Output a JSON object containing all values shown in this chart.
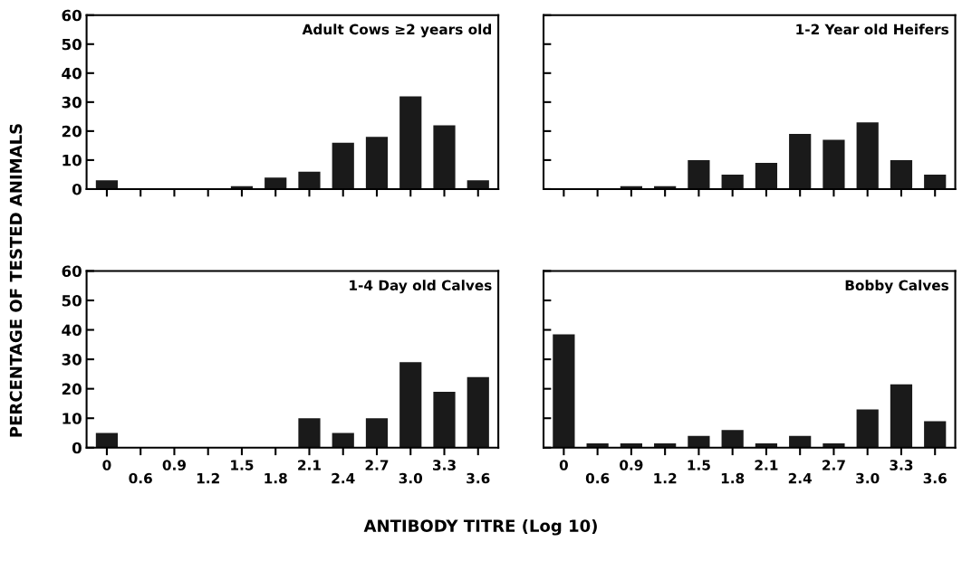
{
  "chart_data": [
    {
      "type": "bar",
      "title": "Adult Cows ≥2 years old",
      "ylabel": "PERCENTAGE OF TESTED ANIMALS",
      "categories": [
        "0",
        "0.6",
        "0.9",
        "1.2",
        "1.5",
        "1.8",
        "2.1",
        "2.4",
        "2.7",
        "3.0",
        "3.3",
        "3.6"
      ],
      "color": "#1a1a1a",
      "values": [
        3,
        0,
        0,
        0,
        1,
        4,
        6,
        16,
        18,
        32,
        22,
        3
      ],
      "ylim": [
        0,
        60
      ],
      "yticks": [
        0,
        10,
        20,
        30,
        40,
        50,
        60
      ],
      "tick_labels": "y"
    },
    {
      "type": "bar",
      "title": "1-2 Year old Heifers",
      "categories": [
        "0",
        "0.6",
        "0.9",
        "1.2",
        "1.5",
        "1.8",
        "2.1",
        "2.4",
        "2.7",
        "3.0",
        "3.3",
        "3.6"
      ],
      "color": "#1a1a1a",
      "values": [
        0,
        0,
        1,
        1,
        10,
        5,
        9,
        19,
        17,
        23,
        10,
        5
      ],
      "ylim": [
        0,
        60
      ],
      "yticks": [
        0,
        10,
        20,
        30,
        40,
        50,
        60
      ],
      "tick_labels": false
    },
    {
      "type": "bar",
      "title": "1-4 Day old Calves",
      "xlabel": "ANTIBODY TITRE (Log 10)",
      "categories": [
        "0",
        "0.6",
        "0.9",
        "1.2",
        "1.5",
        "1.8",
        "2.1",
        "2.4",
        "2.7",
        "3.0",
        "3.3",
        "3.6"
      ],
      "color": "#1a1a1a",
      "values": [
        5,
        0,
        0,
        0,
        0,
        0,
        10,
        5,
        10,
        29,
        19,
        24
      ],
      "ylim": [
        0,
        60
      ],
      "yticks": [
        0,
        10,
        20,
        30,
        40,
        50,
        60
      ]
    },
    {
      "type": "bar",
      "title": "Bobby Calves",
      "categories": [
        "0",
        "0.6",
        "0.9",
        "1.2",
        "1.5",
        "1.8",
        "2.1",
        "2.4",
        "2.7",
        "3.0",
        "3.3",
        "3.6"
      ],
      "color": "#1a1a1a",
      "values": [
        38.5,
        1.5,
        1.5,
        1.5,
        4,
        6,
        1.5,
        4,
        1.5,
        13,
        21.5,
        9
      ],
      "ylim": [
        0,
        60
      ],
      "yticks": [
        0,
        10,
        20,
        30,
        40,
        50,
        60
      ],
      "tick_labels": "x"
    }
  ]
}
